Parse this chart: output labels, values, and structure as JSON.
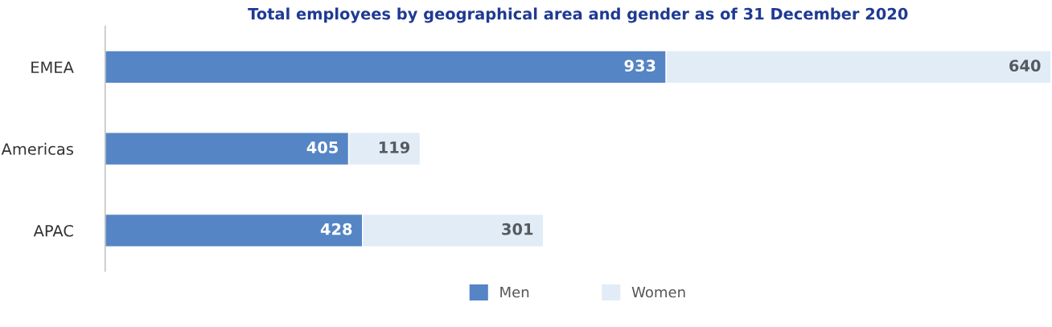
{
  "chart_data": {
    "type": "bar",
    "orientation": "horizontal",
    "stacked": true,
    "title": "Total employees by geographical area and gender as of 31 December 2020",
    "categories": [
      "EMEA",
      "Americas",
      "APAC"
    ],
    "series": [
      {
        "name": "Men",
        "color": "#5585c5",
        "values": [
          933,
          405,
          428
        ]
      },
      {
        "name": "Women",
        "color": "#e1ecf7",
        "values": [
          640,
          119,
          301
        ]
      }
    ],
    "data_labels": true,
    "legend": "bottom",
    "grid": false,
    "tick_labels": "y"
  }
}
